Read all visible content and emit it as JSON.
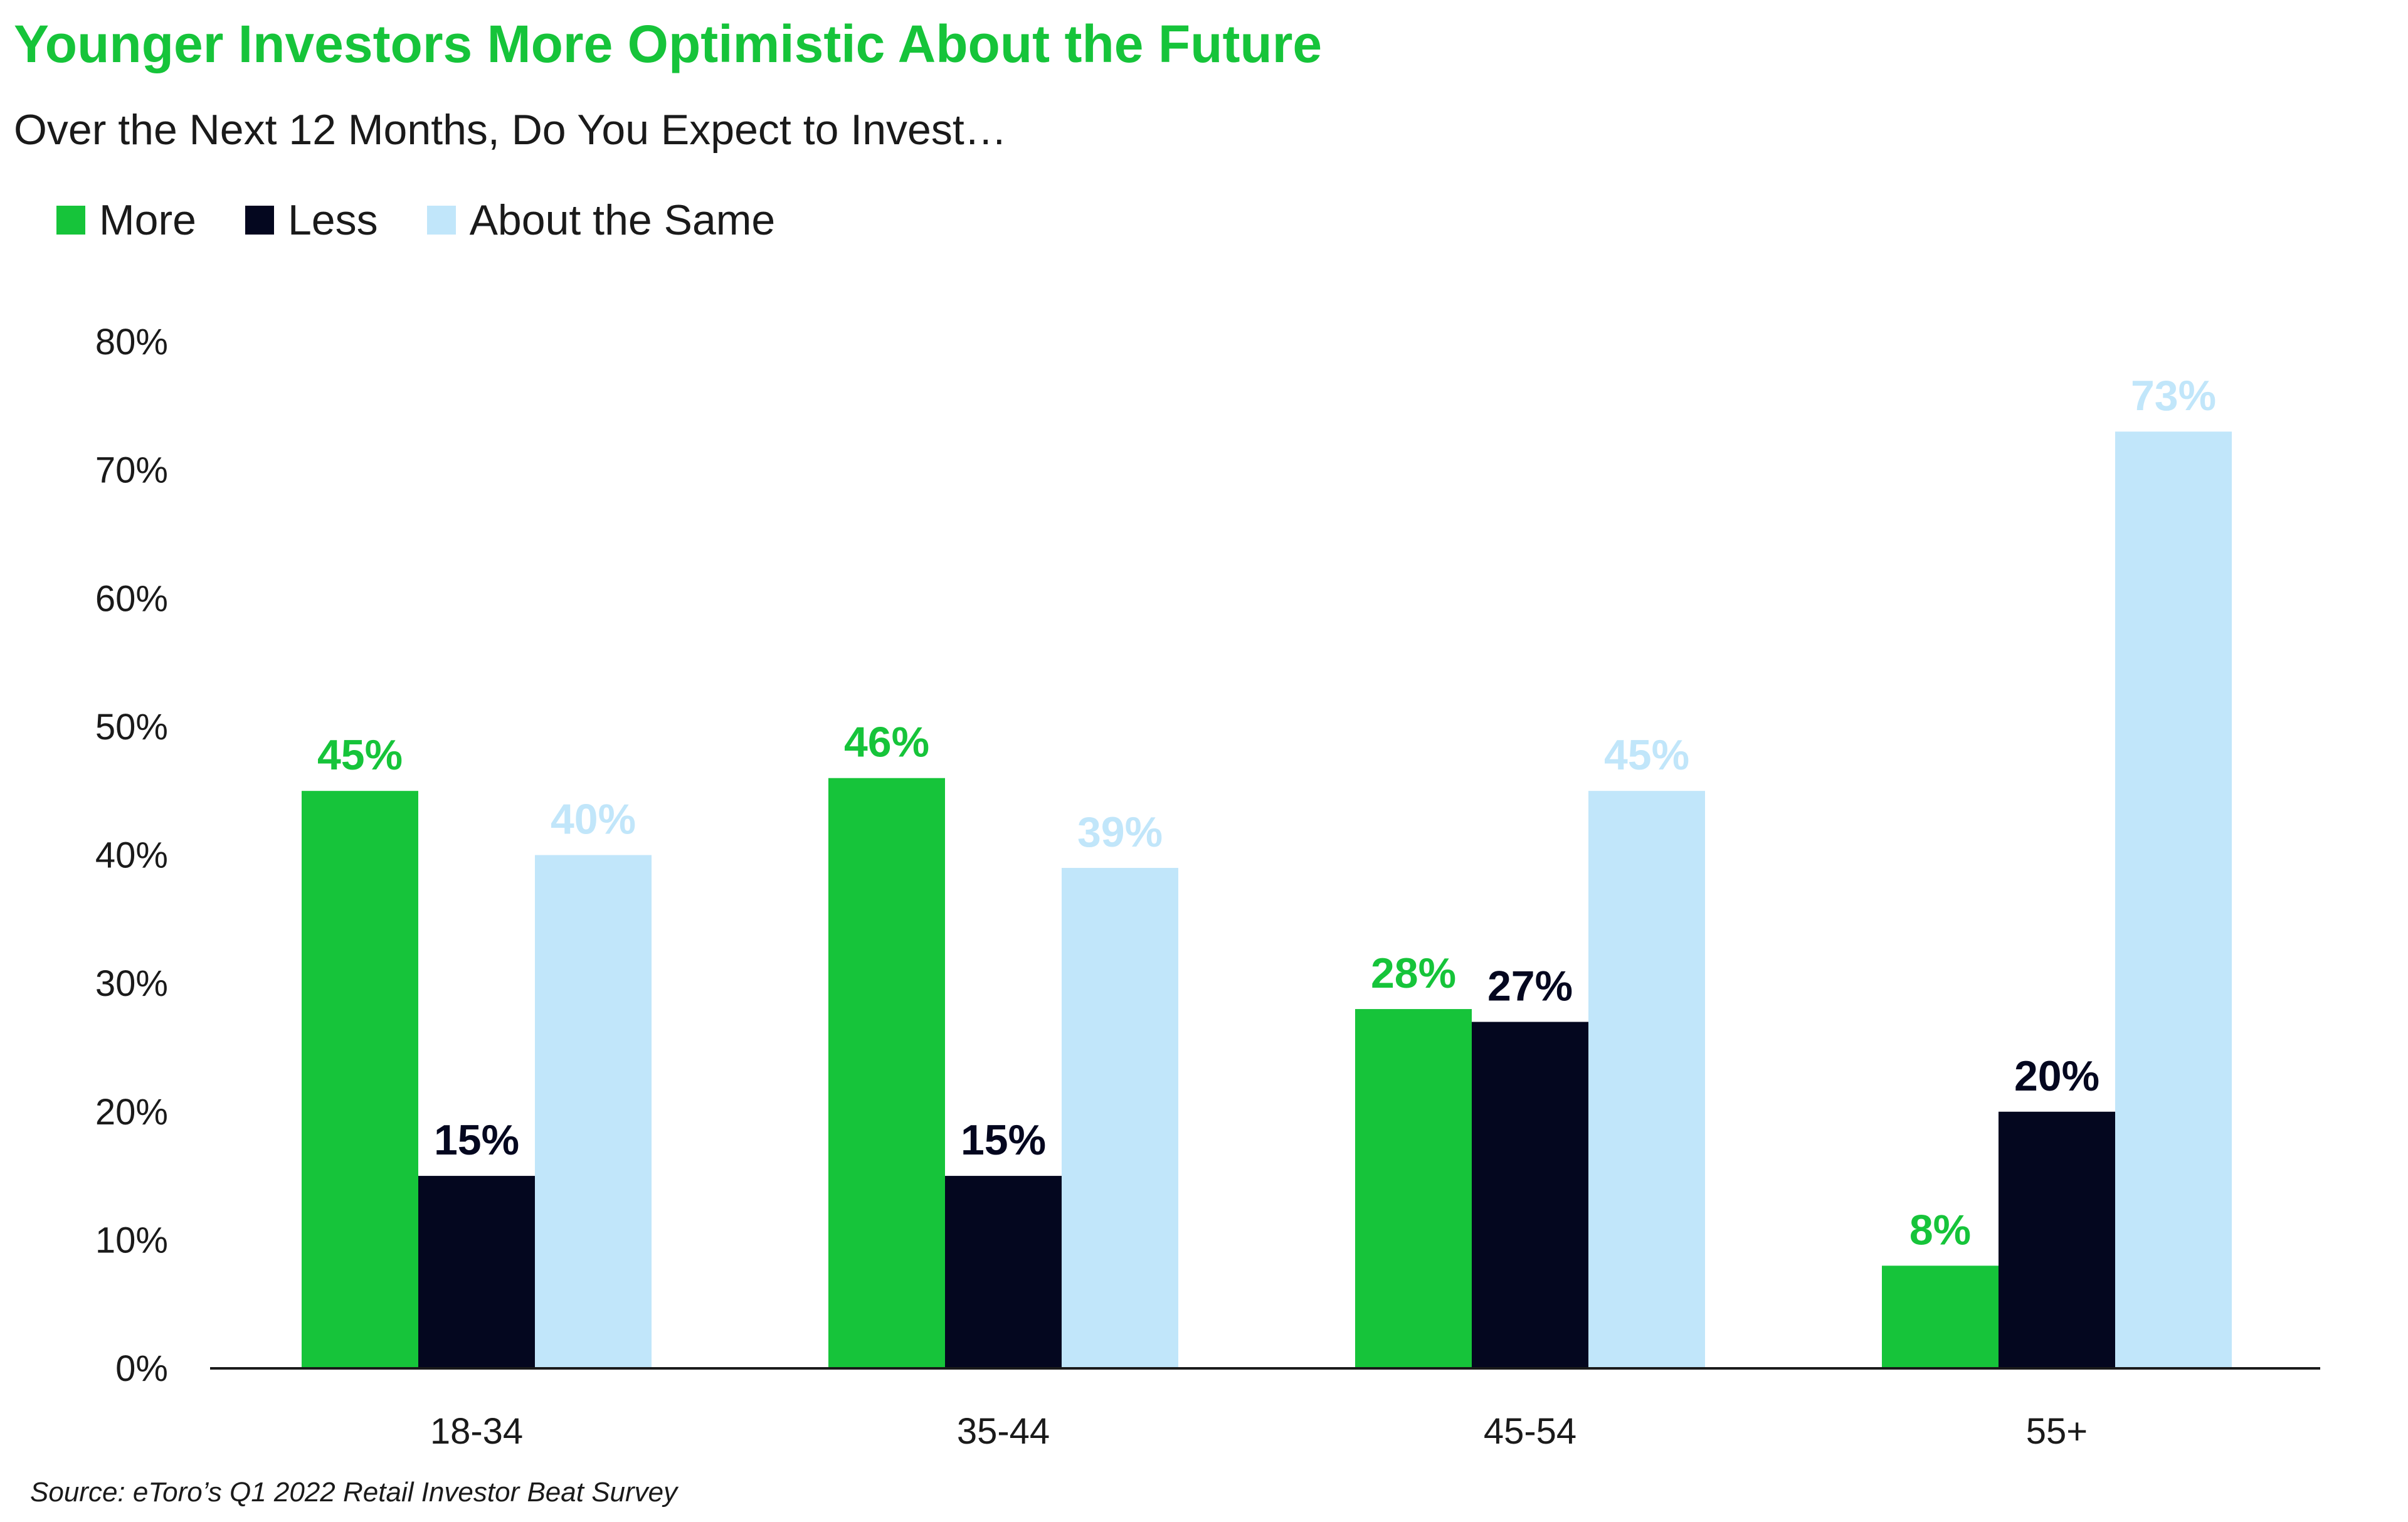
{
  "source": "Source: eToro’s Q1 2022 Retail Investor Beat Survey",
  "colors": {
    "title": "#16c43a",
    "more": "#16c43a",
    "less": "#04071f",
    "same": "#c1e6fa",
    "axis": "#1a1a1a"
  },
  "chart_data": {
    "type": "bar",
    "title": "Younger Investors More Optimistic About the Future",
    "subtitle": "Over the Next 12 Months, Do You Expect to Invest…",
    "categories": [
      "18-34",
      "35-44",
      "45-54",
      "55+"
    ],
    "series": [
      {
        "name": "More",
        "color": "#16c43a",
        "values": [
          45,
          46,
          28,
          8
        ]
      },
      {
        "name": "Less",
        "color": "#04071f",
        "values": [
          15,
          15,
          27,
          20
        ]
      },
      {
        "name": "About the Same",
        "color": "#c1e6fa",
        "values": [
          40,
          39,
          45,
          73
        ]
      }
    ],
    "ylim": [
      0,
      80
    ],
    "yticks": [
      "0%",
      "10%",
      "20%",
      "30%",
      "40%",
      "50%",
      "60%",
      "70%",
      "80%"
    ],
    "value_suffix": "%",
    "legend_position": "top-left",
    "grid": false
  }
}
